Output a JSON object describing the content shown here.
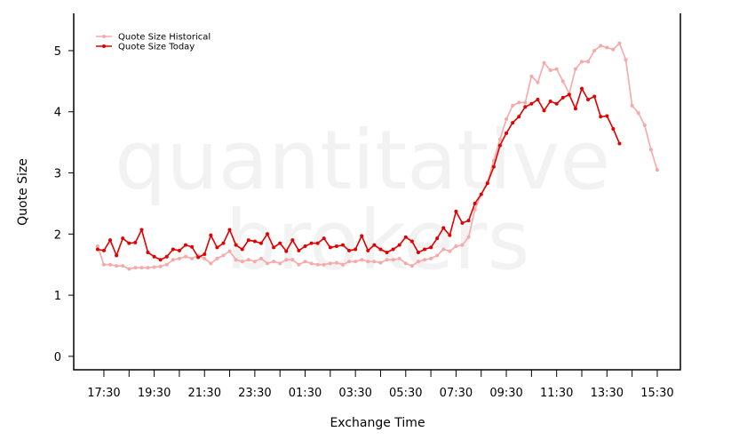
{
  "chart_data": {
    "type": "line",
    "watermark": [
      "quantitative",
      "brokers"
    ],
    "xlabel": "Exchange Time",
    "ylabel": "Quote Size",
    "x": [
      17.25,
      17.5,
      17.75,
      18,
      18.25,
      18.5,
      18.75,
      19,
      19.25,
      19.5,
      19.75,
      20,
      20.25,
      20.5,
      20.75,
      21,
      21.25,
      21.5,
      21.75,
      22,
      22.25,
      22.5,
      22.75,
      23,
      23.25,
      23.5,
      23.75,
      24,
      24.25,
      24.5,
      24.75,
      25,
      25.25,
      25.5,
      25.75,
      26,
      26.25,
      26.5,
      26.75,
      27,
      27.25,
      27.5,
      27.75,
      28,
      28.25,
      28.5,
      28.75,
      29,
      29.25,
      29.5,
      29.75,
      30,
      30.25,
      30.5,
      30.75,
      31,
      31.25,
      31.5,
      31.75,
      32,
      32.25,
      32.5,
      32.75,
      33,
      33.25,
      33.5,
      33.75,
      34,
      34.25,
      34.5,
      34.75,
      35,
      35.25,
      35.5,
      35.75,
      36,
      36.25,
      36.5,
      36.75,
      37,
      37.25,
      37.5,
      37.75,
      38,
      38.25,
      38.5,
      38.75,
      39,
      39.25,
      39.5
    ],
    "series": [
      {
        "name": "Quote Size Historical",
        "color": "#f7a8a8",
        "values": [
          1.8,
          1.5,
          1.5,
          1.48,
          1.48,
          1.43,
          1.45,
          1.45,
          1.45,
          1.46,
          1.47,
          1.5,
          1.58,
          1.6,
          1.63,
          1.6,
          1.65,
          1.6,
          1.52,
          1.6,
          1.65,
          1.72,
          1.58,
          1.55,
          1.58,
          1.55,
          1.6,
          1.52,
          1.55,
          1.52,
          1.58,
          1.58,
          1.5,
          1.55,
          1.52,
          1.5,
          1.5,
          1.52,
          1.53,
          1.5,
          1.55,
          1.55,
          1.58,
          1.55,
          1.55,
          1.53,
          1.58,
          1.58,
          1.6,
          1.52,
          1.48,
          1.55,
          1.58,
          1.6,
          1.65,
          1.75,
          1.72,
          1.8,
          1.82,
          1.95,
          2.4,
          2.65,
          2.85,
          3.2,
          3.55,
          3.88,
          4.1,
          4.15,
          4.15,
          4.58,
          4.48,
          4.8,
          4.68,
          4.7,
          4.5,
          4.3,
          4.7,
          4.82,
          4.82,
          5.0,
          5.08,
          5.05,
          5.02,
          5.12,
          4.85,
          4.1,
          3.98,
          3.78,
          3.38,
          3.05
        ]
      },
      {
        "name": "Quote Size Today",
        "color": "#e00000",
        "values": [
          1.75,
          1.73,
          1.9,
          1.65,
          1.93,
          1.85,
          1.86,
          2.07,
          1.7,
          1.63,
          1.58,
          1.63,
          1.75,
          1.73,
          1.82,
          1.79,
          1.62,
          1.67,
          1.98,
          1.78,
          1.85,
          2.07,
          1.82,
          1.75,
          1.9,
          1.88,
          1.85,
          2.0,
          1.78,
          1.85,
          1.72,
          1.9,
          1.73,
          1.8,
          1.85,
          1.85,
          1.93,
          1.78,
          1.8,
          1.82,
          1.73,
          1.75,
          1.97,
          1.73,
          1.82,
          1.75,
          1.7,
          1.75,
          1.82,
          1.95,
          1.88,
          1.7,
          1.75,
          1.78,
          1.93,
          2.1,
          1.98,
          2.37,
          2.18,
          2.22,
          2.5,
          2.65,
          2.83,
          3.1,
          3.45,
          3.65,
          3.82,
          3.92,
          4.08,
          4.13,
          4.2,
          4.02,
          4.17,
          4.13,
          4.23,
          4.28,
          4.05,
          4.38,
          4.2,
          4.25,
          3.92,
          3.93,
          3.72,
          3.48,
          null,
          null,
          null,
          null,
          null,
          null
        ]
      }
    ],
    "xlim": [
      16.3,
      40.42
    ],
    "xticks": [
      {
        "value": 17.5,
        "label": "17:30"
      },
      {
        "value": 19.5,
        "label": "19:30"
      },
      {
        "value": 21.5,
        "label": "21:30"
      },
      {
        "value": 23.5,
        "label": "23:30"
      },
      {
        "value": 25.5,
        "label": "01:30"
      },
      {
        "value": 27.5,
        "label": "03:30"
      },
      {
        "value": 29.5,
        "label": "05:30"
      },
      {
        "value": 31.5,
        "label": "07:30"
      },
      {
        "value": 33.5,
        "label": "09:30"
      },
      {
        "value": 35.5,
        "label": "11:30"
      },
      {
        "value": 37.5,
        "label": "13:30"
      },
      {
        "value": 39.5,
        "label": "15:30"
      }
    ],
    "xminor_ticks": [
      18.5,
      20.5,
      22.5,
      24.5,
      26.5,
      28.5,
      30.5,
      32.5,
      34.5,
      36.5,
      38.5
    ],
    "ylim": [
      -0.22,
      5.61
    ],
    "yticks": [
      0,
      1,
      2,
      3,
      4,
      5
    ],
    "legend": "upper left"
  }
}
